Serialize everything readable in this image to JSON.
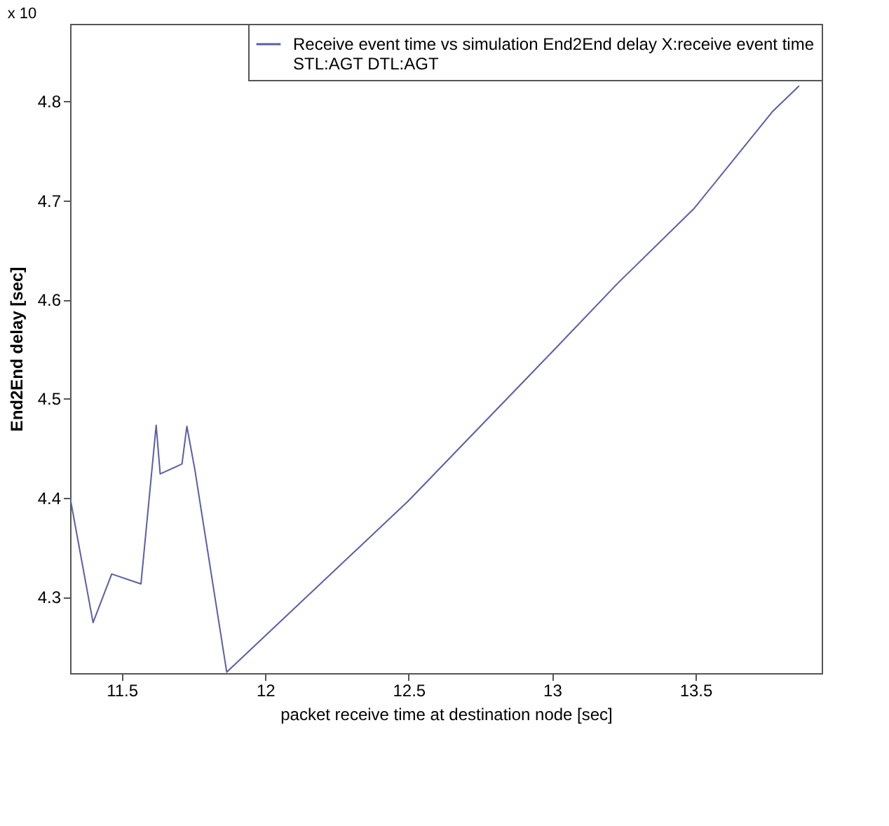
{
  "chart_data": {
    "type": "line",
    "xlabel": "packet receive time at destination node [sec]",
    "ylabel": "End2End delay [sec]",
    "annotations": [
      "x 10"
    ],
    "series": [
      {
        "name": "Receive event time vs simulation End2End delay X:receive event time\nSTL:AGT DTL:AGT",
        "color": "#5a5ea6",
        "x": [
          11.32,
          11.4,
          11.465,
          11.567,
          11.62,
          11.634,
          11.71,
          11.727,
          11.755,
          11.866,
          12.5,
          13.0,
          13.228,
          13.496,
          13.77,
          13.86
        ],
        "values": [
          4.4,
          4.274,
          4.323,
          4.313,
          4.473,
          4.424,
          4.434,
          4.472,
          4.428,
          4.224,
          4.397,
          4.547,
          4.616,
          4.692,
          4.79,
          4.815
        ]
      }
    ],
    "xlim": [
      11.32,
      13.94
    ],
    "xticks": [
      11.5,
      12,
      12.5,
      13,
      13.5
    ],
    "ylim": [
      4.223,
      4.878
    ],
    "yticks": [
      4.3,
      4.4,
      4.5,
      4.6,
      4.7,
      4.8
    ],
    "grid": false,
    "legend": "top right",
    "marker": "none",
    "line_style": "solid"
  }
}
